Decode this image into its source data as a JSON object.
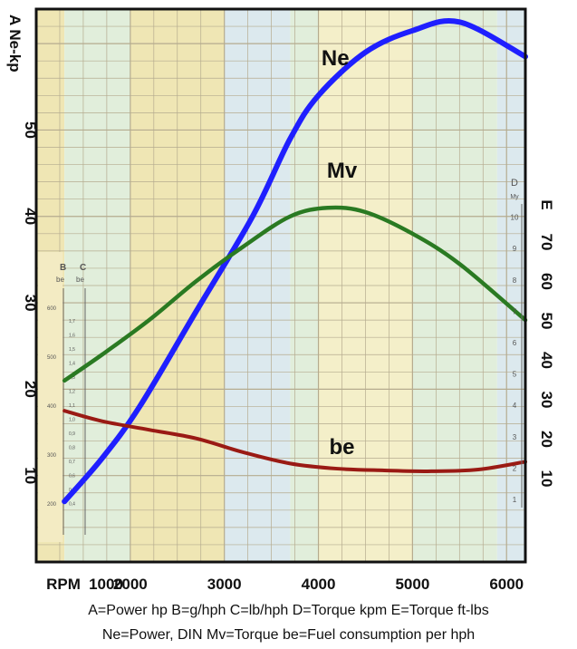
{
  "chart_data": {
    "type": "line",
    "x_axis": {
      "label": "RPM",
      "ticks": [
        1000,
        2000,
        3000,
        4000,
        5000,
        6000
      ],
      "xlim": [
        1000,
        6200
      ]
    },
    "left_axis": {
      "label": "A Ne-kp",
      "ticks": [
        "10",
        "20",
        "30",
        "40",
        "50"
      ],
      "ylim": [
        0,
        64
      ]
    },
    "right_axis_E": {
      "label": "E",
      "ticks": [
        "10",
        "20",
        "30",
        "40",
        "50",
        "60",
        "70"
      ]
    },
    "right_axis_D": {
      "label": "D",
      "unit": "My",
      "ticks": [
        "1",
        "2",
        "3",
        "4",
        "5",
        "6",
        "7",
        "8",
        "9",
        "10"
      ]
    },
    "inset_axes": {
      "B": {
        "label": "B",
        "unit": "be",
        "ticks": [
          "200",
          "300",
          "400",
          "500",
          "600"
        ]
      },
      "C": {
        "label": "C",
        "unit": "be",
        "ticks": [
          "0,4",
          "0,5",
          "0,6",
          "0,7",
          "0,8",
          "0,9",
          "1,0",
          "1,1",
          "1,2",
          "1,3",
          "1,4",
          "1,5",
          "1,6",
          "1,7"
        ]
      }
    },
    "series": [
      {
        "name": "Ne",
        "color": "#1f1fff",
        "x": [
          1300,
          1700,
          2100,
          2700,
          3300,
          3700,
          4000,
          4500,
          5000,
          5500,
          6200
        ],
        "y": [
          7,
          12,
          18,
          29,
          40,
          49,
          54,
          59,
          61.5,
          62.5,
          58.5
        ]
      },
      {
        "name": "Mv",
        "color": "#2a7a22",
        "x": [
          1300,
          1700,
          2200,
          2700,
          3200,
          3700,
          4100,
          4500,
          5000,
          5500,
          6200
        ],
        "y": [
          21,
          24,
          28,
          32.5,
          36.5,
          40,
          41,
          40.5,
          38,
          34.5,
          28
        ]
      },
      {
        "name": "be",
        "color": "#9a1a14",
        "x": [
          1300,
          1700,
          2200,
          2700,
          3200,
          3700,
          4200,
          4700,
          5200,
          5700,
          6200
        ],
        "y": [
          17.5,
          16.3,
          15.3,
          14.3,
          12.7,
          11.4,
          10.8,
          10.6,
          10.5,
          10.7,
          11.6
        ]
      }
    ],
    "colors": {
      "band_yellow": "#efe6b4",
      "band_cream": "#f4efc9",
      "band_green": "#e1eedb",
      "band_blue": "#dce9ee",
      "grid": "#b5ab8f",
      "frame": "#111111"
    }
  },
  "captions": {
    "line1": "A=Power hp  B=g/hph  C=lb/hph  D=Torque kpm  E=Torque ft-lbs",
    "line2": "Ne=Power, DIN  Mv=Torque  be=Fuel consumption per hph"
  }
}
